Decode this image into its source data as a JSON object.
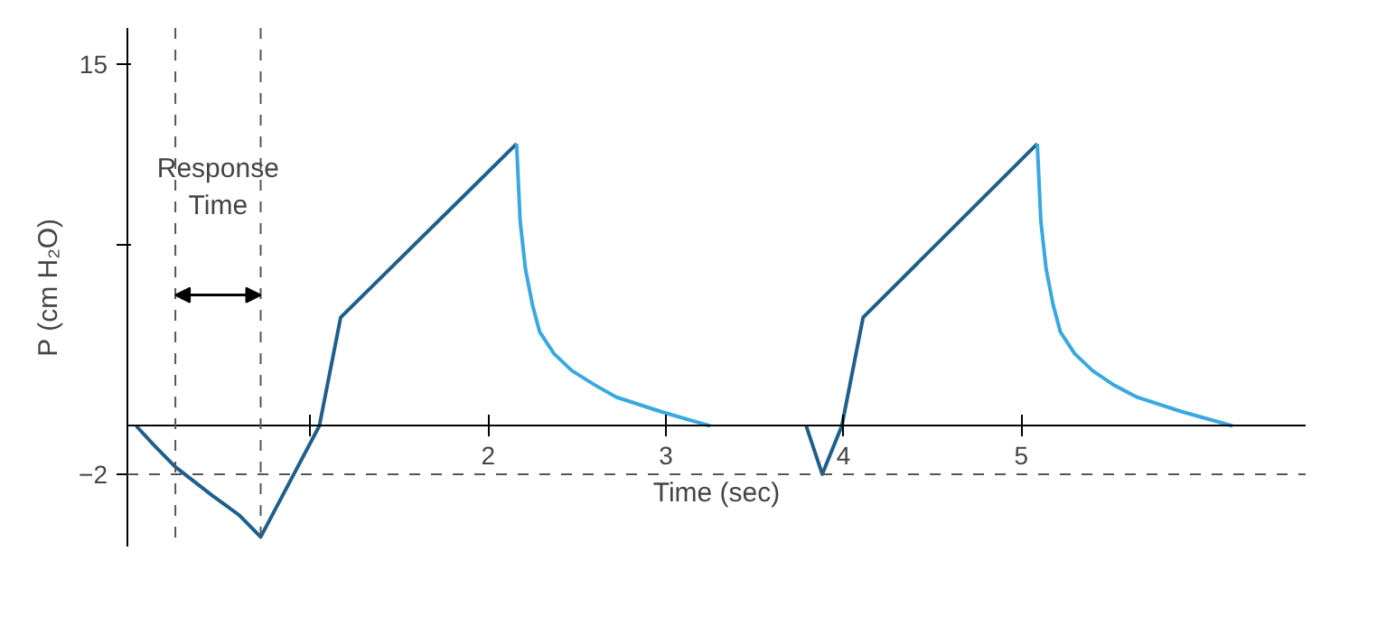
{
  "chart_data": {
    "type": "line",
    "xlabel": "Time (sec)",
    "ylabel": "P (cm H₂O)",
    "series": [
      {
        "color": "#1f5f8b",
        "x": [
          0.02,
          0.12,
          0.24,
          0.45,
          0.6,
          0.72,
          1.05,
          1.17,
          2.16,
          null,
          3.79,
          3.88,
          3.99,
          4.11,
          5.09
        ],
        "values": [
          0,
          -0.8,
          -1.7,
          -2.9,
          -3.7,
          -4.6,
          0,
          4.5,
          11.7,
          null,
          0,
          -2,
          0,
          4.5,
          11.7
        ]
      },
      {
        "color": "#3aa8e0",
        "x": [
          2.16,
          2.18,
          2.21,
          2.25,
          2.29,
          2.37,
          2.47,
          2.6,
          2.72,
          2.97,
          3.25,
          null,
          5.09,
          5.11,
          5.14,
          5.18,
          5.22,
          5.3,
          5.4,
          5.52,
          5.65,
          5.9,
          6.19
        ],
        "values": [
          11.7,
          8.5,
          6.5,
          5,
          3.9,
          3,
          2.3,
          1.7,
          1.2,
          0.6,
          0,
          null,
          11.7,
          8.5,
          6.5,
          5,
          3.9,
          3,
          2.3,
          1.7,
          1.2,
          0.6,
          0
        ]
      }
    ],
    "xlim": [
      -0.03,
      6.6
    ],
    "ylim": [
      -5,
      16.5
    ],
    "xticks": [
      {
        "value": 1,
        "label": null
      },
      2,
      3,
      4,
      5
    ],
    "yticks": [
      {
        "value": -2,
        "label": "−2"
      },
      {
        "value": 7.5,
        "label": null
      },
      15
    ],
    "ref_lines": [
      {
        "axis": "y",
        "value": -2,
        "line_style": "dashed",
        "color": "#555555"
      },
      {
        "axis": "x",
        "value": 0.24,
        "line_style": "dashed",
        "color": "#555555"
      },
      {
        "axis": "x",
        "value": 0.72,
        "line_style": "dashed",
        "color": "#555555"
      }
    ],
    "annotations": [
      "Response Time"
    ],
    "grid": false,
    "line_style": "solid",
    "marker": "none"
  }
}
